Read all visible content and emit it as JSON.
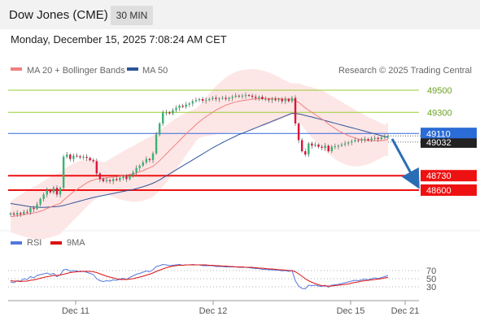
{
  "header": {
    "title": "Dow Jones (CME)",
    "interval": "30 MIN",
    "datetime": "Monday, December 15, 2025 7:08:24 AM CET"
  },
  "legend": {
    "ma20_bb": "MA 20 + Bollinger Bands",
    "ma50": "MA 50",
    "credit": "Research © 2025 Trading Central",
    "rsi": "RSI",
    "rsi_ma": "9MA"
  },
  "colors": {
    "ma20": "#f08080",
    "ma50": "#2f5597",
    "band": "#fde3e3",
    "up": "#3cb371",
    "down": "#dc143c",
    "resistance": "#9acd32",
    "support": "#ee1111",
    "pivot": "#3366dd",
    "rsi": "#5577dd",
    "rsi_ma": "#dd1111",
    "arrow": "#2a6db5"
  },
  "chart_data": [
    {
      "type": "candlestick",
      "title": "Dow Jones (CME)",
      "timeframe": "30 MIN",
      "x_ticks": [
        "Dec 11",
        "Dec 12",
        "Dec 15",
        "Dec 21"
      ],
      "ylim": [
        48300,
        49580
      ],
      "current_price": 49032,
      "levels": [
        {
          "value": 49500,
          "label": "49500",
          "kind": "resistance"
        },
        {
          "value": 49300,
          "label": "49300",
          "kind": "resistance"
        },
        {
          "value": 49110,
          "label": "49110",
          "kind": "pivot"
        },
        {
          "value": 48730,
          "label": "48730",
          "kind": "support"
        },
        {
          "value": 48600,
          "label": "48600",
          "kind": "support"
        }
      ],
      "current_price_label": "49032",
      "close": [
        48390,
        48380,
        48395,
        48385,
        48405,
        48400,
        48440,
        48430,
        48470,
        48520,
        48560,
        48600,
        48580,
        48620,
        48560,
        48620,
        48900,
        48920,
        48880,
        48910,
        48905,
        48895,
        48900,
        48890,
        48870,
        48860,
        48750,
        48700,
        48680,
        48690,
        48680,
        48700,
        48690,
        48710,
        48720,
        48700,
        48730,
        48760,
        48800,
        48820,
        48850,
        48880,
        48870,
        48930,
        49100,
        49200,
        49300,
        49300,
        49290,
        49320,
        49340,
        49360,
        49350,
        49370,
        49380,
        49400,
        49410,
        49420,
        49405,
        49410,
        49420,
        49430,
        49420,
        49425,
        49430,
        49420,
        49430,
        49440,
        49450,
        49445,
        49450,
        49455,
        49450,
        49440,
        49430,
        49440,
        49420,
        49420,
        49410,
        49420,
        49410,
        49420,
        49400,
        49420,
        49400,
        49430,
        49200,
        49050,
        48950,
        48920,
        49020,
        49000,
        49010,
        48990,
        48980,
        49000,
        48950,
        48990,
        48995,
        49000,
        49010,
        49020,
        49030,
        49040,
        49050,
        49045,
        49055,
        49060,
        49050,
        49065,
        49070,
        49060,
        49075,
        49080,
        49090
      ],
      "ma20": [
        48360,
        48365,
        48370,
        48375,
        48380,
        48385,
        48390,
        48395,
        48400,
        48410,
        48420,
        48435,
        48445,
        48460,
        48470,
        48480,
        48510,
        48535,
        48560,
        48585,
        48605,
        48625,
        48645,
        48665,
        48680,
        48690,
        48700,
        48700,
        48705,
        48710,
        48715,
        48720,
        48720,
        48725,
        48730,
        48735,
        48740,
        48745,
        48755,
        48765,
        48775,
        48790,
        48800,
        48815,
        48840,
        48865,
        48895,
        48925,
        48955,
        48985,
        49015,
        49045,
        49075,
        49105,
        49135,
        49160,
        49190,
        49215,
        49240,
        49260,
        49280,
        49300,
        49320,
        49335,
        49350,
        49365,
        49375,
        49385,
        49395,
        49400,
        49405,
        49410,
        49415,
        49420,
        49420,
        49425,
        49425,
        49425,
        49425,
        49425,
        49425,
        49425,
        49420,
        49420,
        49420,
        49420,
        49405,
        49390,
        49365,
        49340,
        49320,
        49300,
        49280,
        49260,
        49240,
        49220,
        49195,
        49175,
        49155,
        49135,
        49120,
        49105,
        49090,
        49080,
        49070,
        49060,
        49055,
        49050,
        49045,
        49045,
        49045,
        49045,
        49045,
        49050,
        49055
      ],
      "ma50": [
        48480,
        48475,
        48470,
        48465,
        48460,
        48455,
        48450,
        48448,
        48446,
        48445,
        48445,
        48446,
        48448,
        48450,
        48452,
        48455,
        48462,
        48470,
        48478,
        48486,
        48494,
        48502,
        48510,
        48518,
        48526,
        48534,
        48540,
        48546,
        48552,
        48558,
        48564,
        48570,
        48576,
        48582,
        48588,
        48594,
        48600,
        48606,
        48614,
        48622,
        48630,
        48640,
        48650,
        48662,
        48676,
        48692,
        48710,
        48728,
        48746,
        48764,
        48782,
        48800,
        48818,
        48836,
        48854,
        48872,
        48890,
        48908,
        48926,
        48944,
        48962,
        48980,
        48996,
        49012,
        49028,
        49044,
        49058,
        49072,
        49086,
        49100,
        49112,
        49124,
        49136,
        49148,
        49160,
        49172,
        49184,
        49196,
        49208,
        49220,
        49232,
        49244,
        49256,
        49268,
        49280,
        49292,
        49290,
        49285,
        49280,
        49272,
        49265,
        49258,
        49250,
        49242,
        49234,
        49226,
        49218,
        49210,
        49202,
        49194,
        49186,
        49178,
        49170,
        49162,
        49154,
        49146,
        49138,
        49130,
        49122,
        49114,
        49106,
        49098,
        49090,
        49082,
        49075
      ],
      "bb_width": 230
    },
    {
      "type": "line",
      "title": "RSI",
      "ylim": [
        0,
        100
      ],
      "y_ticks": [
        70,
        50,
        30
      ],
      "series": [
        {
          "name": "RSI",
          "values": [
            42,
            40,
            45,
            44,
            50,
            48,
            55,
            52,
            58,
            60,
            62,
            64,
            60,
            63,
            55,
            60,
            72,
            73,
            68,
            70,
            69,
            67,
            68,
            66,
            63,
            60,
            50,
            45,
            43,
            45,
            44,
            47,
            46,
            49,
            51,
            48,
            53,
            57,
            61,
            63,
            66,
            69,
            67,
            72,
            80,
            82,
            85,
            84,
            82,
            83,
            84,
            85,
            83,
            84,
            84,
            85,
            84,
            84,
            82,
            82,
            82,
            82,
            80,
            80,
            80,
            79,
            79,
            79,
            79,
            78,
            78,
            78,
            77,
            76,
            75,
            75,
            73,
            73,
            72,
            72,
            71,
            71,
            69,
            70,
            68,
            70,
            45,
            32,
            26,
            25,
            34,
            33,
            34,
            32,
            31,
            34,
            29,
            34,
            35,
            36,
            38,
            40,
            42,
            44,
            46,
            45,
            47,
            49,
            47,
            50,
            52,
            50,
            53,
            55,
            58
          ]
        },
        {
          "name": "9MA",
          "values": [
            45,
            44,
            44,
            43,
            44,
            44,
            46,
            47,
            49,
            51,
            53,
            55,
            56,
            58,
            58,
            59,
            61,
            63,
            65,
            66,
            67,
            68,
            68,
            68,
            68,
            67,
            65,
            62,
            59,
            56,
            54,
            52,
            50,
            48,
            48,
            48,
            49,
            50,
            52,
            54,
            56,
            59,
            61,
            64,
            68,
            71,
            74,
            77,
            79,
            81,
            82,
            83,
            83,
            84,
            84,
            84,
            84,
            84,
            84,
            84,
            83,
            83,
            82,
            82,
            81,
            81,
            80,
            80,
            79,
            79,
            79,
            78,
            78,
            78,
            77,
            76,
            76,
            75,
            74,
            74,
            73,
            72,
            72,
            71,
            70,
            70,
            67,
            62,
            56,
            50,
            45,
            41,
            38,
            35,
            33,
            32,
            32,
            32,
            33,
            34,
            35,
            36,
            37,
            39,
            41,
            42,
            44,
            45,
            46,
            47,
            48,
            49,
            50,
            52,
            53
          ]
        }
      ]
    }
  ]
}
